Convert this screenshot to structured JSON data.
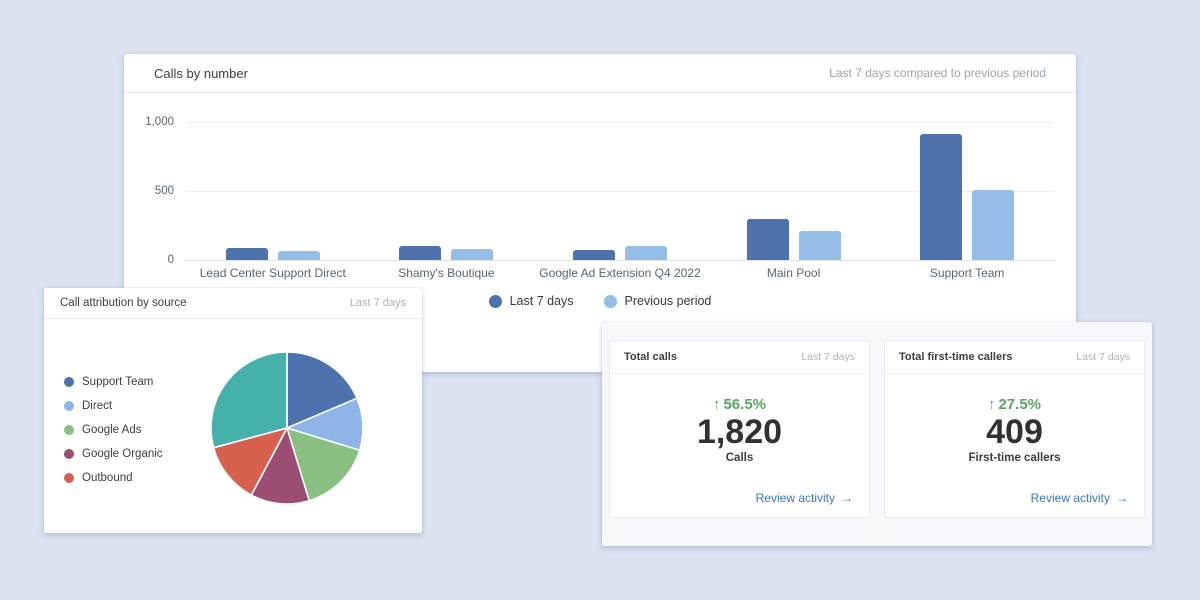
{
  "page": {
    "background": "#dbe3f1"
  },
  "calls_card": {
    "title": "Calls by number",
    "subtitle": "Last 7 days compared to previous period"
  },
  "pie_card": {
    "title": "Call attribution by source",
    "subtitle": "Last 7 days"
  },
  "chart_data": [
    {
      "type": "bar",
      "title": "Calls by number",
      "categories": [
        "Lead Center Support Direct",
        "Shamy's Boutique",
        "Google Ad Extension Q4 2022",
        "Main Pool",
        "Support Team"
      ],
      "series": [
        {
          "name": "Last 7 days",
          "color": "#4d72ae",
          "values": [
            85,
            105,
            70,
            300,
            910
          ]
        },
        {
          "name": "Previous period",
          "color": "#94bde8",
          "values": [
            65,
            80,
            105,
            210,
            510
          ]
        }
      ],
      "ylim": [
        0,
        1000
      ],
      "yticks": [
        {
          "value": 1000,
          "label": "1,000"
        },
        {
          "value": 500,
          "label": "500"
        },
        {
          "value": 0,
          "label": "0"
        }
      ],
      "grid": "horizontal",
      "legend_position": "bottom"
    },
    {
      "type": "pie",
      "title": "Call attribution by source",
      "start": "top",
      "direction": "clockwise",
      "legend_position": "left",
      "slices": [
        {
          "label": "Support Team",
          "color": "#4d72ae",
          "angle_deg": 67,
          "percent": 18.6,
          "in_legend": true
        },
        {
          "label": "Direct",
          "color": "#8fb4e8",
          "angle_deg": 40,
          "percent": 11.1,
          "in_legend": true
        },
        {
          "label": "Google Ads",
          "color": "#8abf82",
          "angle_deg": 56,
          "percent": 15.6,
          "in_legend": true
        },
        {
          "label": "Google Organic",
          "color": "#9c4d74",
          "angle_deg": 45,
          "percent": 12.5,
          "in_legend": true
        },
        {
          "label": "Outbound",
          "color": "#d8604f",
          "angle_deg": 47,
          "percent": 13.1,
          "in_legend": true
        },
        {
          "label": "",
          "color": "#45b1aa",
          "angle_deg": 105,
          "percent": 29.2,
          "in_legend": false
        }
      ]
    }
  ],
  "stats": {
    "cards": [
      {
        "title": "Total calls",
        "period": "Last 7 days",
        "change": "56.5%",
        "change_direction": "up",
        "up_arrow": "↑",
        "value": "1,820",
        "value_label": "Calls",
        "link_label": "Review activity",
        "link_arrow": "→"
      },
      {
        "title": "Total first-time callers",
        "period": "Last 7 days",
        "change": "27.5%",
        "change_direction": "up",
        "up_arrow": "↑",
        "value": "409",
        "value_label": "First-time callers",
        "link_label": "Review activity",
        "link_arrow": "→"
      }
    ]
  },
  "colors": {
    "background": "#dbe3f1",
    "series_current": "#4d72ae",
    "series_previous": "#94bde8",
    "positive_green": "#57a564",
    "link_blue": "#3779c2",
    "muted_text": "#9aa5b3",
    "dark_text": "#3b4046"
  }
}
